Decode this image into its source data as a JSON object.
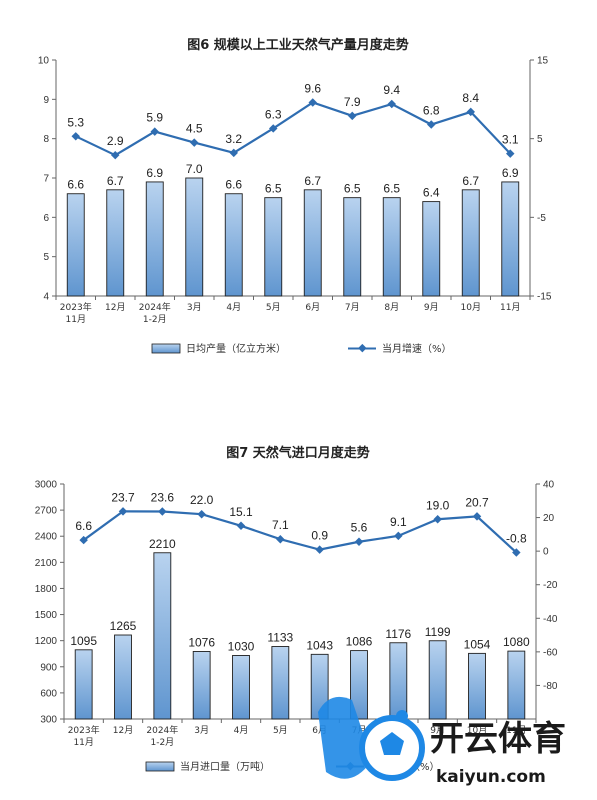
{
  "colors": {
    "bar_fill_top": "#b9d3ef",
    "bar_fill_bottom": "#5f95cf",
    "bar_stroke": "#1f1f1f",
    "line": "#2f6db1",
    "axis": "#666666",
    "watermark_blue": "#1e88e5"
  },
  "watermark": {
    "text": "开云体育",
    "sub": "kaiyun.com",
    "icon": "soccer-ball-logo"
  },
  "chart_data": [
    {
      "type": "bar+line",
      "title": "图6  规模以上工业天然气产量月度走势",
      "categories": [
        [
          "2023年",
          "11月"
        ],
        [
          "12月"
        ],
        [
          "2024年",
          "1-2月"
        ],
        [
          "3月"
        ],
        [
          "4月"
        ],
        [
          "5月"
        ],
        [
          "6月"
        ],
        [
          "7月"
        ],
        [
          "8月"
        ],
        [
          "9月"
        ],
        [
          "10月"
        ],
        [
          "11月"
        ]
      ],
      "left_axis": {
        "min": 4,
        "max": 10,
        "ticks": [
          4,
          5,
          6,
          7,
          8,
          9,
          10
        ]
      },
      "right_axis": {
        "min": -15,
        "max": 15,
        "ticks": [
          -15,
          -5,
          5,
          15
        ]
      },
      "series": [
        {
          "name": "日均产量（亿立方米）",
          "kind": "bar",
          "axis": "left",
          "values": [
            6.6,
            6.7,
            6.9,
            7.0,
            6.6,
            6.5,
            6.7,
            6.5,
            6.5,
            6.4,
            6.7,
            6.9
          ],
          "labels": [
            "6.6",
            "6.7",
            "6.9",
            "7.0",
            "6.6",
            "6.5",
            "6.7",
            "6.5",
            "6.5",
            "6.4",
            "6.7",
            "6.9"
          ]
        },
        {
          "name": "当月增速（%）",
          "kind": "line",
          "axis": "right",
          "values": [
            5.3,
            2.9,
            5.9,
            4.5,
            3.2,
            6.3,
            9.6,
            7.9,
            9.4,
            6.8,
            8.4,
            3.1
          ],
          "labels": [
            "5.3",
            "2.9",
            "5.9",
            "4.5",
            "3.2",
            "6.3",
            "9.6",
            "7.9",
            "9.4",
            "6.8",
            "8.4",
            "3.1"
          ]
        }
      ],
      "legend": "bottom"
    },
    {
      "type": "bar+line",
      "title": "图7  天然气进口月度走势",
      "categories": [
        [
          "2023年",
          "11月"
        ],
        [
          "12月"
        ],
        [
          "2024年",
          "1-2月"
        ],
        [
          "3月"
        ],
        [
          "4月"
        ],
        [
          "5月"
        ],
        [
          "6月"
        ],
        [
          "7月"
        ],
        [
          "8月"
        ],
        [
          "9月"
        ],
        [
          "10月"
        ],
        [
          "11月"
        ]
      ],
      "left_axis": {
        "min": 300,
        "max": 3000,
        "ticks": [
          300,
          600,
          900,
          1200,
          1500,
          1800,
          2100,
          2400,
          2700,
          3000
        ]
      },
      "right_axis": {
        "min": -100,
        "max": 40,
        "ticks": [
          -80,
          -60,
          -40,
          -20,
          0,
          20,
          40
        ]
      },
      "series": [
        {
          "name": "当月进口量（万吨）",
          "kind": "bar",
          "axis": "left",
          "values": [
            1095,
            1265,
            2210,
            1076,
            1030,
            1133,
            1043,
            1086,
            1176,
            1199,
            1054,
            1080
          ],
          "labels": [
            "1095",
            "1265",
            "2210",
            "1076",
            "1030",
            "1133",
            "1043",
            "1086",
            "1176",
            "1199",
            "1054",
            "1080"
          ]
        },
        {
          "name": "当月增速（%）",
          "kind": "line",
          "axis": "right",
          "values": [
            6.6,
            23.7,
            23.6,
            22.0,
            15.1,
            7.1,
            0.9,
            5.6,
            9.1,
            19.0,
            20.7,
            -0.8
          ],
          "labels": [
            "6.6",
            "23.7",
            "23.6",
            "22.0",
            "15.1",
            "7.1",
            "0.9",
            "5.6",
            "9.1",
            "19.0",
            "20.7",
            "-0.8"
          ]
        }
      ],
      "legend": "bottom"
    }
  ]
}
